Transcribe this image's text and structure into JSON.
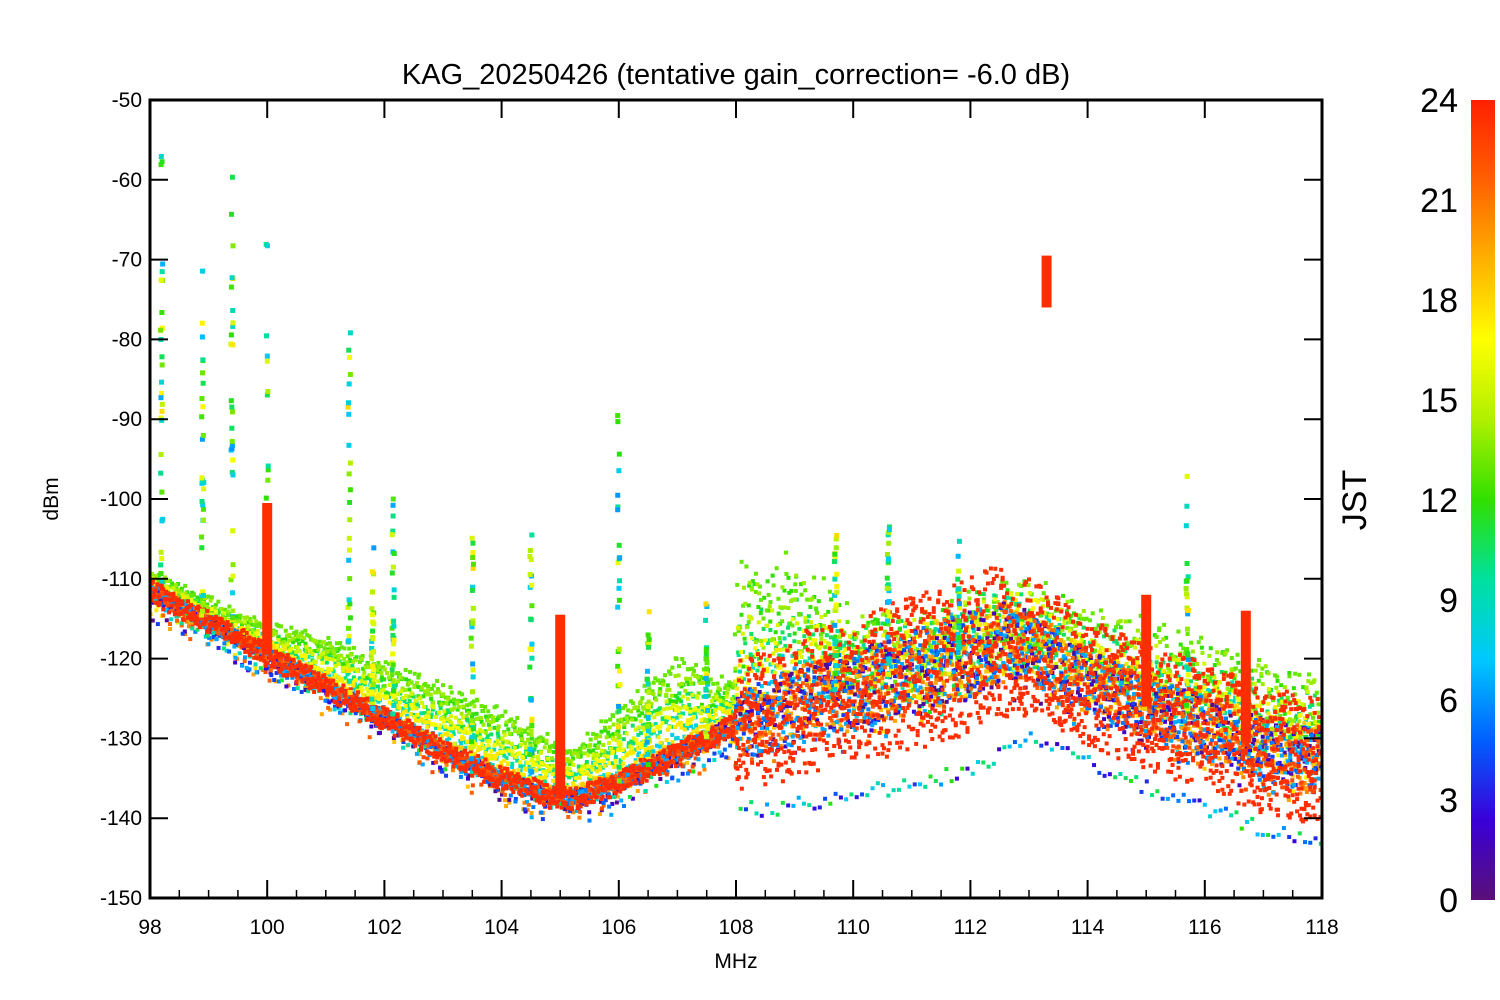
{
  "chart_data": {
    "type": "scatter",
    "title": "KAG_20250426 (tentative gain_correction= -6.0 dB)",
    "xlabel": "MHz",
    "ylabel": "dBm",
    "xlim": [
      98,
      118
    ],
    "ylim": [
      -150,
      -50
    ],
    "x_ticks": [
      98,
      100,
      102,
      104,
      106,
      108,
      110,
      112,
      114,
      116,
      118
    ],
    "y_ticks": [
      -50,
      -60,
      -70,
      -80,
      -90,
      -100,
      -110,
      -120,
      -130,
      -140,
      -150
    ],
    "grid": false,
    "colorbar": {
      "label": "JST",
      "range": [
        0,
        24
      ],
      "ticks": [
        24,
        21,
        18,
        15,
        12,
        9,
        6,
        3,
        0
      ],
      "colormap": [
        "#5a0f78",
        "#3a00d8",
        "#0060ff",
        "#00c8ff",
        "#00e0a0",
        "#30e000",
        "#b0f000",
        "#ffff00",
        "#ffb000",
        "#ff6000",
        "#ff2000"
      ]
    },
    "noise_floor": {
      "x": [
        98,
        99,
        100,
        101,
        102,
        103,
        104,
        104.9,
        105.2,
        106,
        107,
        107.95,
        108.05,
        109,
        110,
        111,
        112,
        112.5,
        113,
        113.5,
        114,
        115,
        116,
        117,
        118
      ],
      "y_night": [
        -111.5,
        -115.5,
        -119.5,
        -123.5,
        -127.5,
        -131.5,
        -135,
        -137.5,
        -137.5,
        -135.5,
        -132,
        -128.5,
        -128.5,
        -126,
        -124,
        -122,
        -119.5,
        -118,
        -118.5,
        -120.5,
        -123,
        -126,
        -128.5,
        -131.5,
        -133
      ],
      "y_day_peak": [
        -109.5,
        -113,
        -116,
        -118,
        -121,
        -124,
        -127,
        -130.5,
        -132,
        -127,
        -120.5,
        -124,
        -112,
        -111,
        -118.5,
        -119.5,
        -117,
        -115.5,
        -114,
        -114.5,
        -117,
        -118.5,
        -121,
        -123.5,
        -125.5
      ],
      "lowest": [
        -114,
        -118,
        -122,
        -126,
        -130,
        -134,
        -137,
        -139,
        -139,
        -138,
        -135,
        -132,
        -140,
        -139.5,
        -138,
        -137,
        -135,
        -133,
        -131,
        -132,
        -134,
        -137,
        -139.5,
        -142.5,
        -144.5
      ]
    },
    "signals": [
      {
        "f": 98.2,
        "top": -52.5
      },
      {
        "f": 98.9,
        "top": -66
      },
      {
        "f": 99.4,
        "top": -54.5
      },
      {
        "f": 100.0,
        "top": -66.5
      },
      {
        "f": 100.0,
        "top": -100.5,
        "hour": 23.5
      },
      {
        "f": 101.4,
        "top": -77
      },
      {
        "f": 101.8,
        "top": -105
      },
      {
        "f": 102.15,
        "top": -93.5
      },
      {
        "f": 103.5,
        "top": -101.5
      },
      {
        "f": 104.5,
        "top": -103.5
      },
      {
        "f": 105.0,
        "top": -114.5,
        "hour": 23.5
      },
      {
        "f": 106.0,
        "top": -80.5
      },
      {
        "f": 106.5,
        "top": -110
      },
      {
        "f": 107.5,
        "top": -110
      },
      {
        "f": 109.7,
        "top": -103.5
      },
      {
        "f": 110.6,
        "top": -102.5
      },
      {
        "f": 111.8,
        "top": -103.5
      },
      {
        "f": 113.3,
        "top": -69.5,
        "bottom": -76,
        "hour": 23.5
      },
      {
        "f": 115.0,
        "top": -112,
        "hour": 23.5
      },
      {
        "f": 115.7,
        "top": -97
      },
      {
        "f": 116.7,
        "top": -114,
        "hour": 23.5
      }
    ]
  }
}
